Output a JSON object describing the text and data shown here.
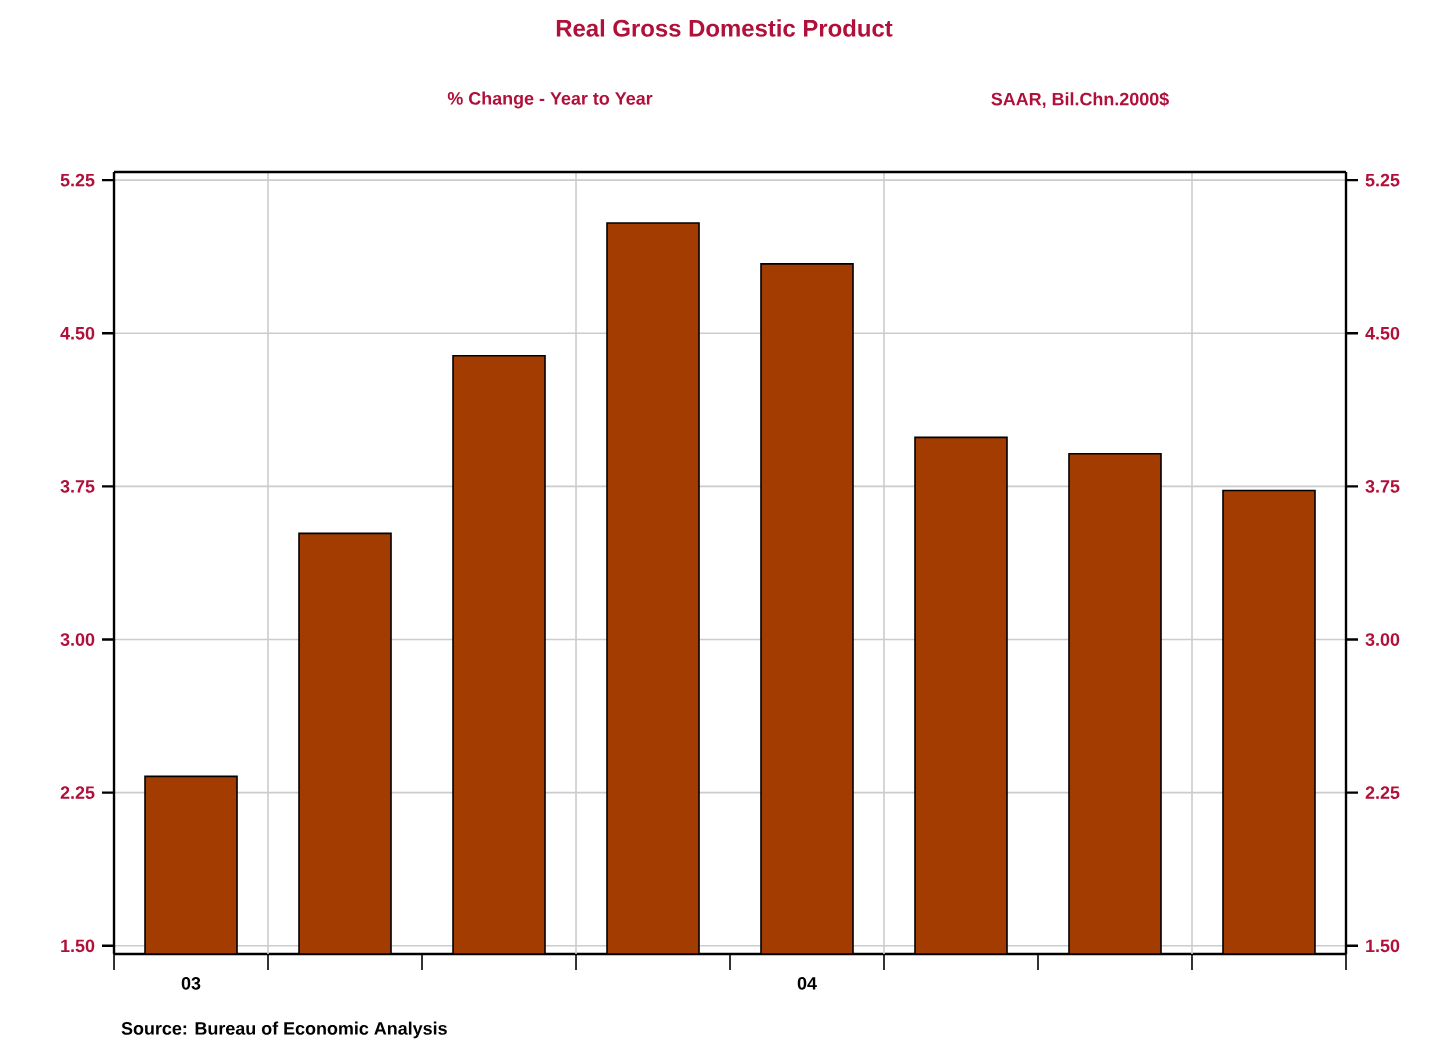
{
  "chart_data": {
    "type": "bar",
    "title": "Real Gross Domestic Product",
    "subtitle": "% Change - Year to Year",
    "annotations": [
      "SAAR, Bil.Chn.2000$",
      "Source:  Bureau of Economic Analysis"
    ],
    "categories": [
      "03",
      null,
      null,
      null,
      "04",
      null,
      null,
      null
    ],
    "values": [
      2.33,
      3.52,
      4.39,
      5.04,
      4.84,
      3.99,
      3.91,
      3.73
    ],
    "color": "#a33c00",
    "ylim": [
      1.46,
      5.29
    ],
    "yticks": [
      {
        "value": 1.5,
        "label": "1.50"
      },
      {
        "value": 2.25,
        "label": "2.25"
      },
      {
        "value": 3.0,
        "label": "3.00"
      },
      {
        "value": 3.75,
        "label": "3.75"
      },
      {
        "value": 4.5,
        "label": "4.50"
      },
      {
        "value": 5.25,
        "label": "5.25"
      }
    ],
    "y2lim": [
      1.46,
      5.29
    ],
    "y2ticks": [
      {
        "value": 1.5,
        "label": "1.50"
      },
      {
        "value": 2.25,
        "label": "2.25"
      },
      {
        "value": 3.0,
        "label": "3.00"
      },
      {
        "value": 3.75,
        "label": "3.75"
      },
      {
        "value": 4.5,
        "label": "4.50"
      },
      {
        "value": 5.25,
        "label": "5.25"
      }
    ],
    "grid": true
  }
}
